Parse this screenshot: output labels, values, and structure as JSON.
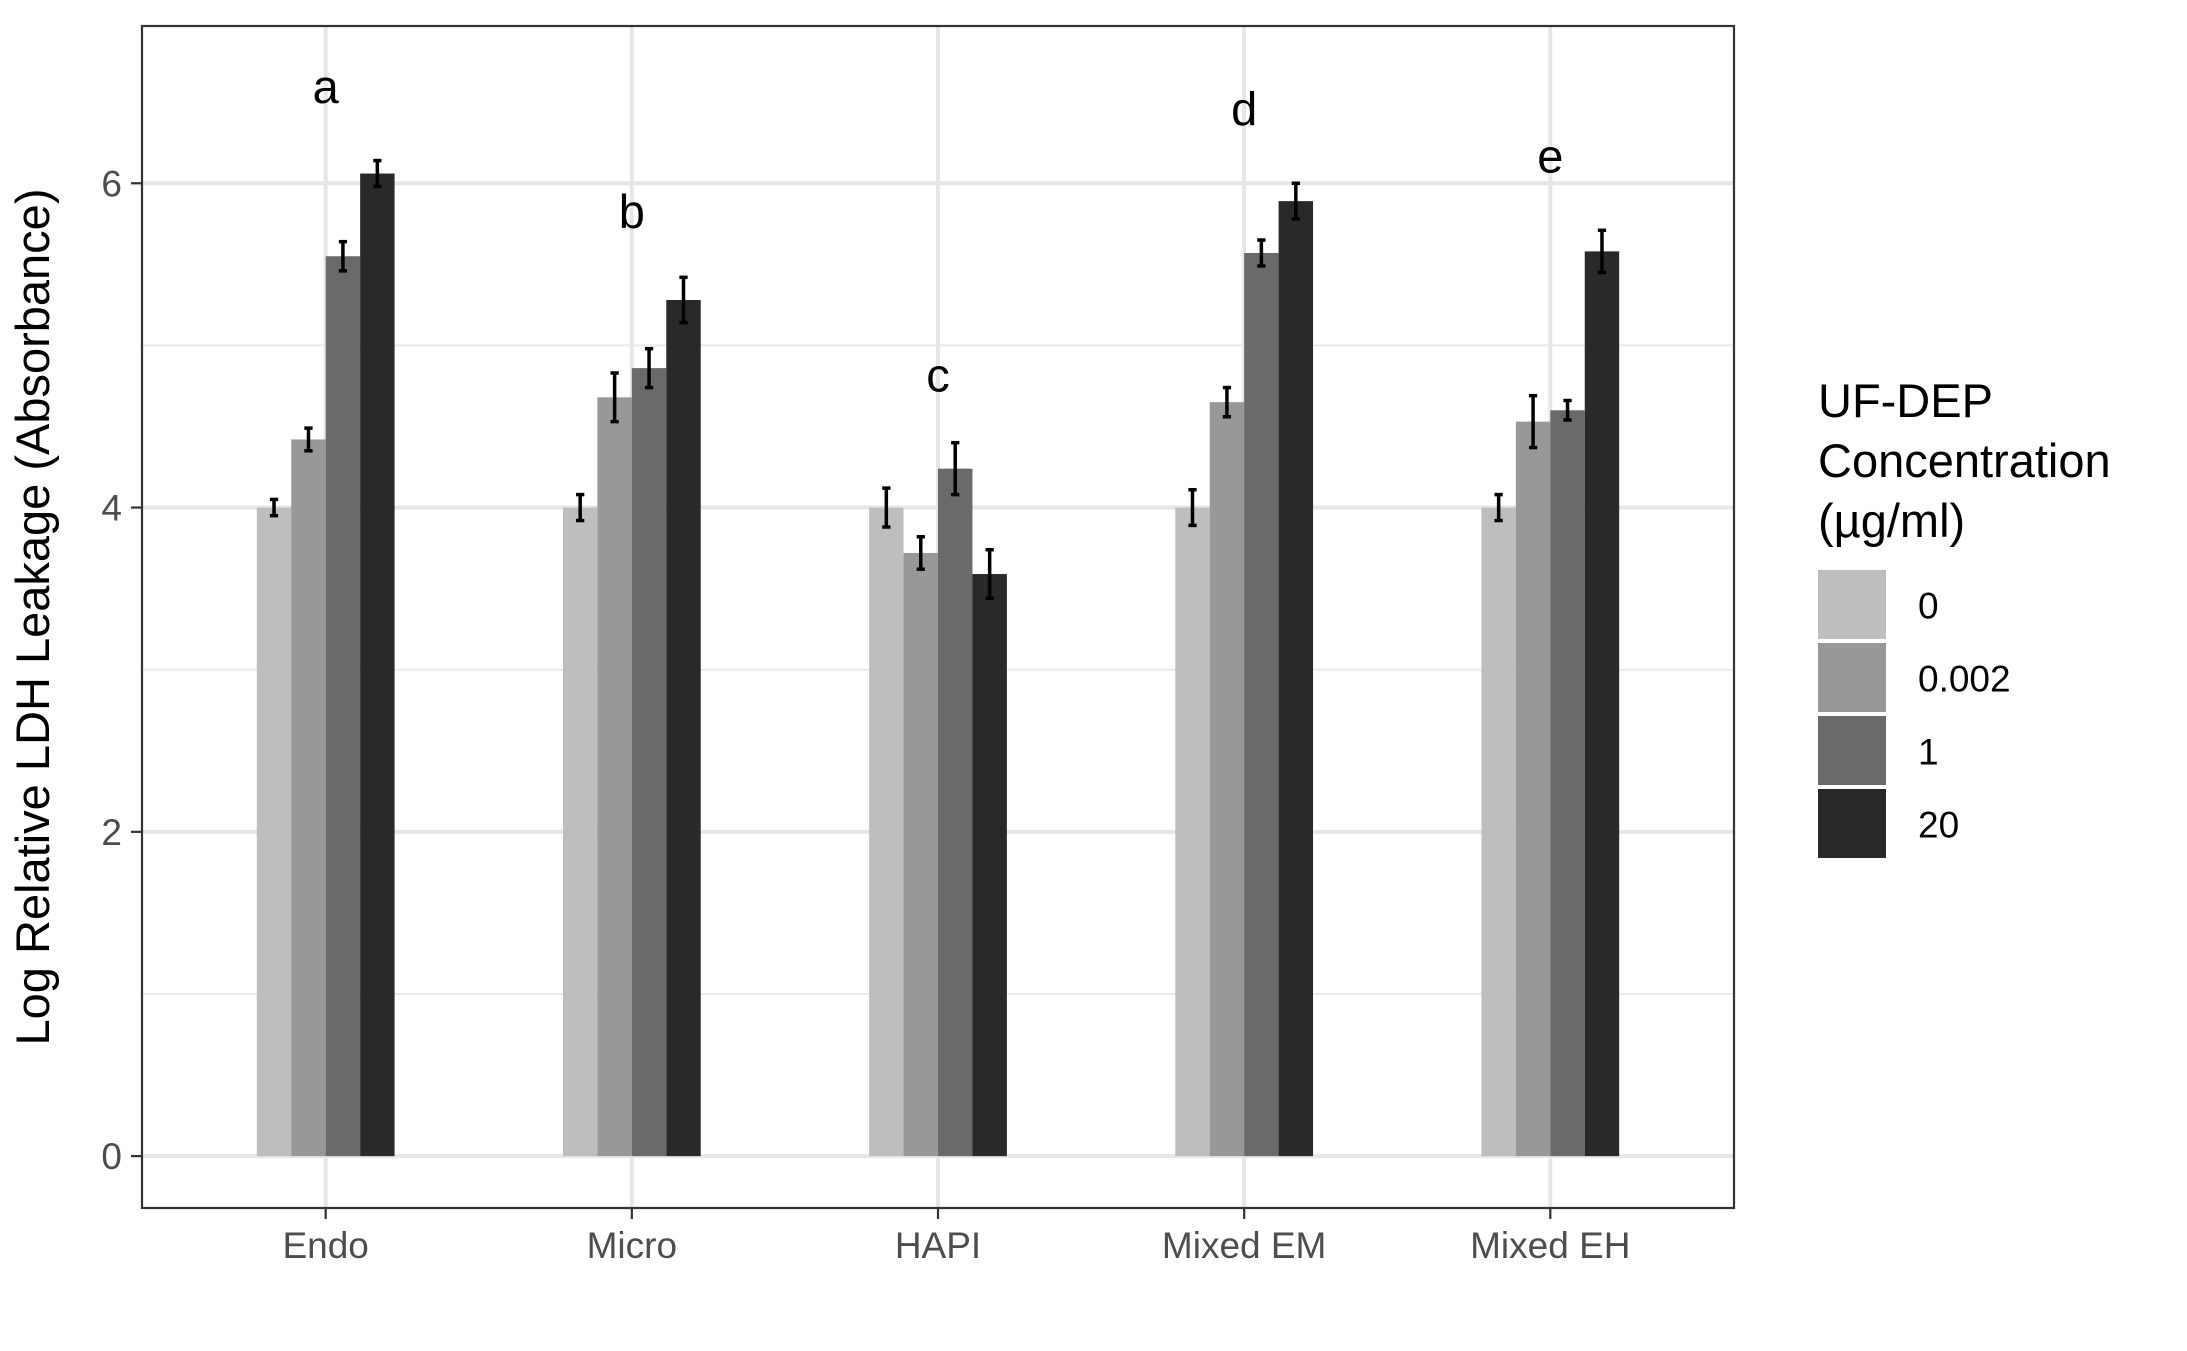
{
  "chart_data": {
    "type": "bar",
    "title": "",
    "xlabel": "",
    "ylabel": "Log Relative LDH Leakage (Absorbance)",
    "ylim": [
      -0.32,
      6.97
    ],
    "yticks": [
      0,
      2,
      4,
      6
    ],
    "grid": true,
    "legend_position": "right",
    "legend_title": [
      "UF-DEP",
      "Concentration",
      "(µg/ml)"
    ],
    "categories": [
      "Endo",
      "Micro",
      "HAPI",
      "Mixed EM",
      "Mixed EH"
    ],
    "series": [
      {
        "name": "0",
        "color": "#bebebe",
        "values": [
          4.0,
          4.0,
          4.0,
          4.0,
          4.0
        ],
        "errors": [
          0.05,
          0.08,
          0.12,
          0.11,
          0.08
        ]
      },
      {
        "name": "0.002",
        "color": "#989898",
        "values": [
          4.42,
          4.68,
          3.72,
          4.65,
          4.53
        ],
        "errors": [
          0.07,
          0.15,
          0.1,
          0.09,
          0.16
        ]
      },
      {
        "name": "1",
        "color": "#6a6a6a",
        "values": [
          5.55,
          4.86,
          4.24,
          5.57,
          4.6
        ],
        "errors": [
          0.09,
          0.12,
          0.16,
          0.08,
          0.06
        ]
      },
      {
        "name": "20",
        "color": "#292929",
        "values": [
          6.06,
          5.28,
          3.59,
          5.89,
          5.58
        ],
        "errors": [
          0.08,
          0.14,
          0.15,
          0.11,
          0.13
        ]
      }
    ],
    "annotations": [
      {
        "category": "Endo",
        "text": "a",
        "y": 6.6
      },
      {
        "category": "Micro",
        "text": "b",
        "y": 5.83
      },
      {
        "category": "HAPI",
        "text": "c",
        "y": 4.82
      },
      {
        "category": "Mixed EM",
        "text": "d",
        "y": 6.46
      },
      {
        "category": "Mixed EH",
        "text": "e",
        "y": 6.17
      }
    ]
  }
}
